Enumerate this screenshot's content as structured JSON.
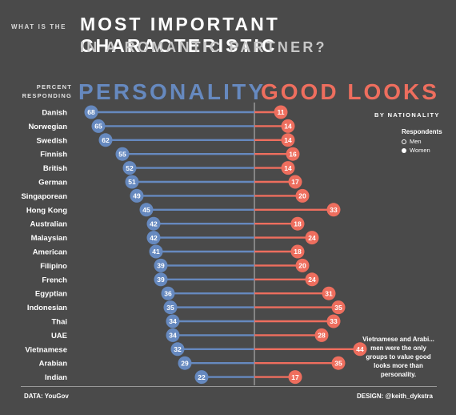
{
  "header": {
    "question_prefix": "WHAT IS THE",
    "title_line1": "MOST IMPORTANT CHARACTERISTIC",
    "title_line2": "IN A ROMANTIC PARTNER?",
    "percent_label_1": "PERCENT",
    "percent_label_2": "RESPONDING",
    "left_heading": "PERSONALITY",
    "right_heading": "GOOD LOOKS",
    "by_label": "BY NATIONALITY"
  },
  "legend": {
    "title": "Respondents",
    "items": [
      "Men",
      "Women"
    ]
  },
  "annotation": {
    "line1": "Vietnamese and Arabi...",
    "line2": "men were the only",
    "line3": "groups to value good",
    "line4": "looks more than",
    "line5": "personality."
  },
  "footer": {
    "source_label": "DATA:",
    "source_value": "YouGov",
    "design_label": "DESIGN:",
    "design_value": "@keith_dykstra"
  },
  "colors": {
    "background": "#4a4a4a",
    "personality": "#6689bf",
    "good_looks": "#ee6e5e"
  },
  "chart_data": {
    "type": "bar",
    "categories": [
      "Danish",
      "Norwegian",
      "Swedish",
      "Finnish",
      "British",
      "German",
      "Singaporean",
      "Hong Kong",
      "Australian",
      "Malaysian",
      "American",
      "Filipino",
      "French",
      "Egyptian",
      "Indonesian",
      "Thai",
      "UAE",
      "Vietnamese",
      "Arabian",
      "Indian"
    ],
    "series": [
      {
        "name": "PERSONALITY",
        "values": [
          68,
          65,
          62,
          55,
          52,
          51,
          49,
          45,
          42,
          42,
          41,
          39,
          39,
          36,
          35,
          34,
          34,
          32,
          29,
          22
        ]
      },
      {
        "name": "GOOD LOOKS",
        "values": [
          11,
          14,
          14,
          16,
          14,
          17,
          20,
          33,
          18,
          24,
          18,
          20,
          24,
          31,
          35,
          33,
          28,
          44,
          35,
          17
        ]
      }
    ],
    "xlim": [
      0,
      70
    ]
  }
}
